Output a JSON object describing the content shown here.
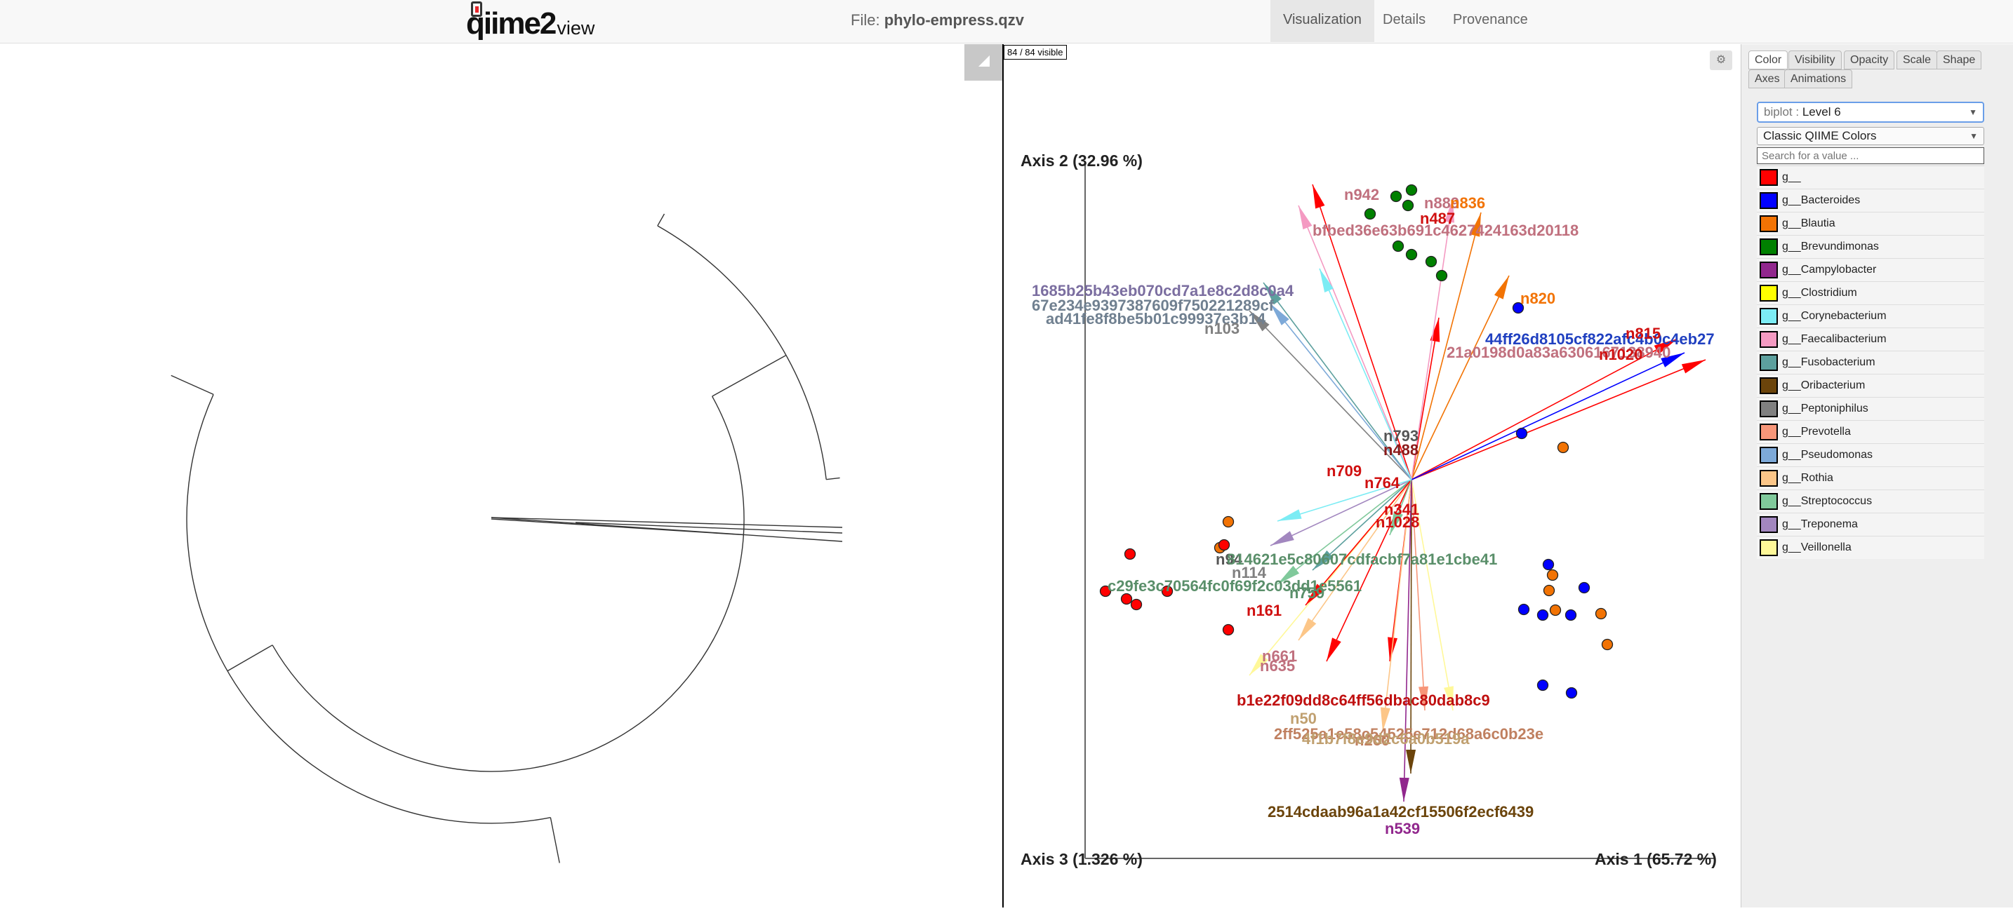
{
  "navbar": {
    "logo_text": "qiime2",
    "logo_suffix": "view",
    "file_prefix": "File:",
    "file_name": "phylo-empress.qzv",
    "tabs": [
      {
        "label": "Visualization",
        "active": true
      },
      {
        "label": "Details",
        "active": false
      },
      {
        "label": "Provenance",
        "active": false
      }
    ]
  },
  "viz": {
    "visible_count": "84 / 84 visible",
    "axes": {
      "axis1": "Axis 1 (65.72 %)",
      "axis2": "Axis 2 (32.96 %)",
      "axis3": "Axis 3 (1.326 %)"
    }
  },
  "menu": {
    "tabs": [
      "Color",
      "Visibility",
      "Opacity",
      "Scale",
      "Shape",
      "Axes",
      "Animations"
    ],
    "active_tab": "Color",
    "color_by_key": "biplot :",
    "color_by_value": "Level 6",
    "scheme": "Classic QIIME Colors",
    "search_placeholder": "Search for a value ...",
    "legend": [
      {
        "label": "g__",
        "color": "#ff0000"
      },
      {
        "label": "g__Bacteroides",
        "color": "#0000ff"
      },
      {
        "label": "g__Blautia",
        "color": "#f27304"
      },
      {
        "label": "g__Brevundimonas",
        "color": "#008000"
      },
      {
        "label": "g__Campylobacter",
        "color": "#91278d"
      },
      {
        "label": "g__Clostridium",
        "color": "#ffff00"
      },
      {
        "label": "g__Corynebacterium",
        "color": "#7cecf4"
      },
      {
        "label": "g__Faecalibacterium",
        "color": "#f49ac2"
      },
      {
        "label": "g__Fusobacterium",
        "color": "#5da09e"
      },
      {
        "label": "g__Oribacterium",
        "color": "#6b440b"
      },
      {
        "label": "g__Peptoniphilus",
        "color": "#808080"
      },
      {
        "label": "g__Prevotella",
        "color": "#f79679"
      },
      {
        "label": "g__Pseudomonas",
        "color": "#7da9d8"
      },
      {
        "label": "g__Rothia",
        "color": "#fcc688"
      },
      {
        "label": "g__Streptococcus",
        "color": "#80c99b"
      },
      {
        "label": "g__Treponema",
        "color": "#a287bf"
      },
      {
        "label": "g__Veillonella",
        "color": "#fff899"
      }
    ]
  },
  "biplot_labels": [
    "n942",
    "n889",
    "n836",
    "n487",
    "bfbed36e63b691c4627424163d20118",
    "1685b25b43eb070cd7a1e8c2d8c0a4",
    "67e234e9397387609f750221289cf",
    "ad41fe8f8be5b01c99937e3b14",
    "n103",
    "n820",
    "44ff26d8105cf822afc4b0c4eb27",
    "21a0198d0a83a6306167138940",
    "n815",
    "n1020",
    "n793",
    "n488",
    "n709",
    "n764",
    "n341",
    "n1028",
    "n94",
    "814621e5c80607cdfacbf7a81e1cbe41",
    "n114",
    "c29fe3c70564fc0f69f2c03dd1e5561",
    "n759",
    "n161",
    "n661",
    "n635",
    "b1e22f09dd8c64ff56dbac80dab8c9",
    "n50",
    "2ff525a1e58c54525e712d68a6c0b23e",
    "n260",
    "4f1b7f8e9d2c6a0b519a",
    "2514cdaab96a1a42cf15506f2ecf6439",
    "n539"
  ]
}
